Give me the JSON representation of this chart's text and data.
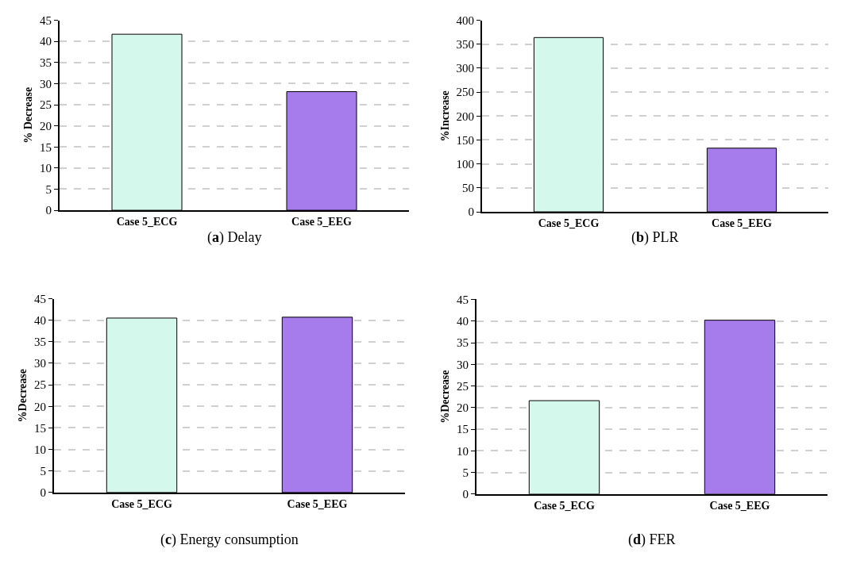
{
  "chart_data": [
    {
      "type": "bar",
      "title": "(a) Delay",
      "ylabel": "% Decrease",
      "categories": [
        "Case 5_ECG",
        "Case 5_EEG"
      ],
      "values": [
        41.7,
        28.1
      ],
      "colors": [
        "#d5f8ec",
        "#a67cec"
      ],
      "ylim": [
        0,
        45
      ],
      "yticks": [
        0,
        5,
        10,
        15,
        20,
        25,
        30,
        35,
        40,
        45
      ],
      "grid": "y"
    },
    {
      "type": "bar",
      "title": "(b) PLR",
      "ylabel": "%Increase",
      "categories": [
        "Case 5_ECG",
        "Case 5_EEG"
      ],
      "values": [
        364,
        133
      ],
      "colors": [
        "#d5f8ec",
        "#a67cec"
      ],
      "ylim": [
        0,
        400
      ],
      "yticks": [
        0,
        50,
        100,
        150,
        200,
        250,
        300,
        350,
        400
      ],
      "grid": "y"
    },
    {
      "type": "bar",
      "title": "(c) Energy consumption",
      "ylabel": "%Decrease",
      "categories": [
        "Case 5_ECG",
        "Case 5_EEG"
      ],
      "values": [
        40.5,
        40.7
      ],
      "colors": [
        "#d5f8ec",
        "#a67cec"
      ],
      "ylim": [
        0,
        45
      ],
      "yticks": [
        0,
        5,
        10,
        15,
        20,
        25,
        30,
        35,
        40,
        45
      ],
      "grid": "y"
    },
    {
      "type": "bar",
      "title": "(d) FER",
      "ylabel": "%Decrease",
      "categories": [
        "Case 5_ECG",
        "Case 5_EEG"
      ],
      "values": [
        21.6,
        40.2
      ],
      "colors": [
        "#d5f8ec",
        "#a67cec"
      ],
      "ylim": [
        0,
        45
      ],
      "yticks": [
        0,
        5,
        10,
        15,
        20,
        25,
        30,
        35,
        40,
        45
      ],
      "grid": "y"
    }
  ]
}
